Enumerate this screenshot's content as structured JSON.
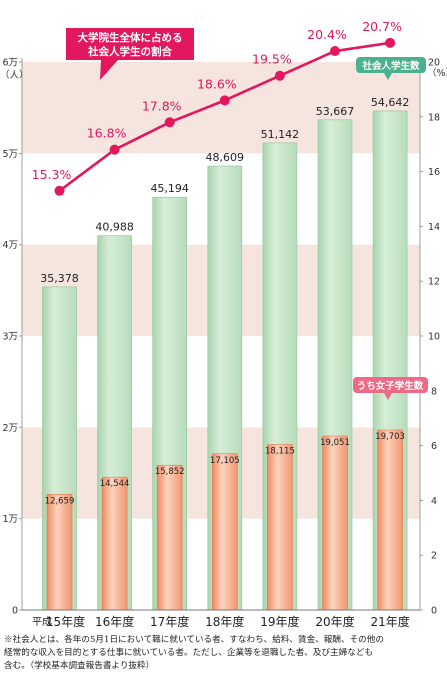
{
  "chart_data": {
    "type": "bar+line",
    "categories": [
      "15年度",
      "16年度",
      "17年度",
      "18年度",
      "19年度",
      "20年度",
      "21年度"
    ],
    "era_prefix": "平成",
    "series": [
      {
        "name": "社会人学生数",
        "type": "bar",
        "axis": "left",
        "values": [
          35378,
          40988,
          45194,
          48609,
          51142,
          53667,
          54642
        ],
        "labels": [
          "35,378",
          "40,988",
          "45,194",
          "48,609",
          "51,142",
          "53,667",
          "54,642"
        ],
        "color": "#c4e3c6"
      },
      {
        "name": "うち女子学生数",
        "type": "bar",
        "axis": "left",
        "values": [
          12659,
          14544,
          15852,
          17105,
          18115,
          19051,
          19703
        ],
        "labels": [
          "12,659",
          "14,544",
          "15,852",
          "17,105",
          "18,115",
          "19,051",
          "19,703"
        ],
        "color": "#f4a27e"
      },
      {
        "name": "大学院生全体に占める社会人学生の割合",
        "name_lines": [
          "大学院生全体に占める",
          "社会人学生の割合"
        ],
        "type": "line",
        "axis": "right",
        "values": [
          15.3,
          16.8,
          17.8,
          18.6,
          19.5,
          20.4,
          20.7
        ],
        "labels": [
          "15.3%",
          "16.8%",
          "17.8%",
          "18.6%",
          "19.5%",
          "20.4%",
          "20.7%"
        ],
        "color": "#e2175e"
      }
    ],
    "y_left": {
      "range": [
        0,
        60000
      ],
      "unit": "（人）",
      "ticks": [
        {
          "value": 0,
          "label": "0"
        },
        {
          "value": 10000,
          "label": "1万"
        },
        {
          "value": 20000,
          "label": "2万"
        },
        {
          "value": 30000,
          "label": "3万"
        },
        {
          "value": 40000,
          "label": "4万"
        },
        {
          "value": 50000,
          "label": "5万"
        },
        {
          "value": 60000,
          "label": "6万"
        }
      ]
    },
    "y_right": {
      "range": [
        0,
        20
      ],
      "unit": "（%）",
      "ticks": [
        {
          "value": 0,
          "label": "0"
        },
        {
          "value": 2,
          "label": "2"
        },
        {
          "value": 4,
          "label": "4"
        },
        {
          "value": 6,
          "label": "6"
        },
        {
          "value": 8,
          "label": "8"
        },
        {
          "value": 10,
          "label": "10"
        },
        {
          "value": 12,
          "label": "12"
        },
        {
          "value": 14,
          "label": "14"
        },
        {
          "value": 16,
          "label": "16"
        },
        {
          "value": 18,
          "label": "18"
        },
        {
          "value": 20,
          "label": "20"
        }
      ]
    },
    "background_bands": "alternating pink/white every 10,000 people"
  },
  "note": {
    "lines": [
      "※社会人とは、各年の5月1日において職に就いている者、すなわち、給料、賃金、報酬、その他の",
      "経常的な収入を目的とする仕事に就いている者。ただし、企業等を退職した者、及び主婦なども",
      "含む。（学校基本調査報告書より抜粋）"
    ]
  }
}
